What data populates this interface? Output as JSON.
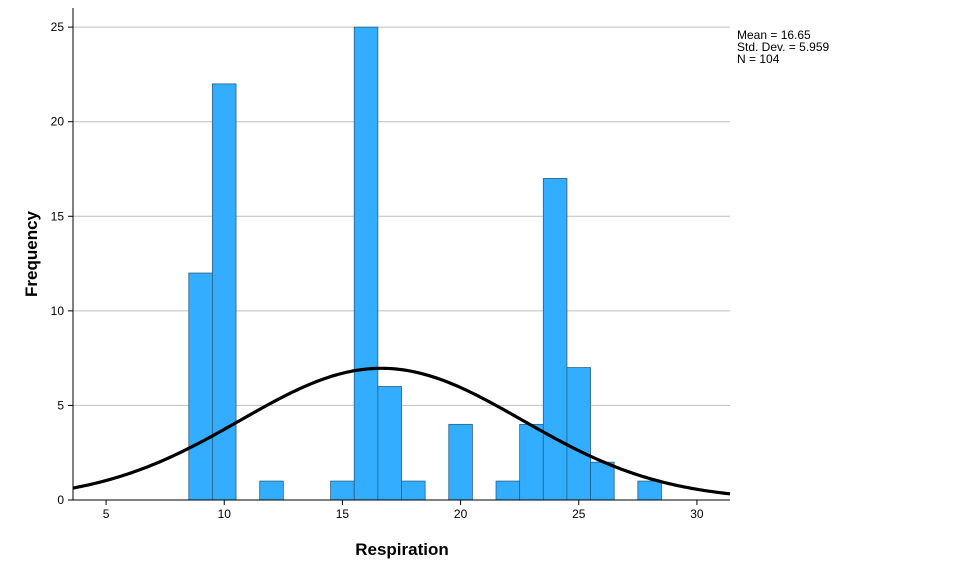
{
  "chart_data": {
    "type": "bar",
    "subtype": "histogram",
    "title": "",
    "xlabel": "Respiration",
    "ylabel": "Frequency",
    "xlim": [
      3.6,
      31.4
    ],
    "ylim": [
      0,
      25.8
    ],
    "x_ticks": [
      5,
      10,
      15,
      20,
      25,
      30
    ],
    "y_ticks": [
      0,
      5,
      10,
      15,
      20,
      25
    ],
    "bin_width": 1,
    "grid": "horizontal",
    "bar_color": "#33adff",
    "bar_edge_color": "#2a5f80",
    "curve_color": "#000000",
    "bins": [
      {
        "center": 9,
        "count": 12
      },
      {
        "center": 10,
        "count": 22
      },
      {
        "center": 12,
        "count": 1
      },
      {
        "center": 15,
        "count": 1
      },
      {
        "center": 16,
        "count": 25
      },
      {
        "center": 17,
        "count": 6
      },
      {
        "center": 18,
        "count": 1
      },
      {
        "center": 20,
        "count": 4
      },
      {
        "center": 22,
        "count": 1
      },
      {
        "center": 23,
        "count": 4
      },
      {
        "center": 24,
        "count": 17
      },
      {
        "center": 25,
        "count": 7
      },
      {
        "center": 26,
        "count": 2
      },
      {
        "center": 28,
        "count": 1
      }
    ],
    "normal_curve": {
      "mean": 16.65,
      "std_dev": 5.959,
      "n": 104
    },
    "stats": [
      "Mean = 16.65",
      "Std. Dev. = 5.959",
      "N = 104"
    ]
  }
}
